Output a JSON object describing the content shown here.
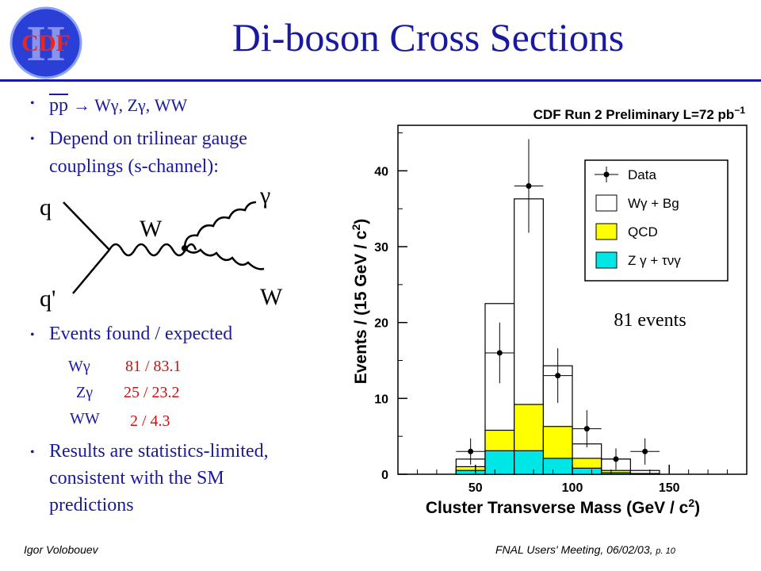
{
  "slide": {
    "title": "Di-boson Cross Sections",
    "logo_text": "CDF",
    "logo_overlay": "II",
    "bullets": {
      "b1_pp": "pp",
      "b1_rest": "→ Wγ, Zγ, WW",
      "b2": "Depend on trilinear gauge couplings (s-channel):",
      "b2_line1": "Depend on trilinear gauge",
      "b2_line2": "couplings (s-channel):",
      "b3": "Events found / expected",
      "b4_line1": "Results are statistics-limited,",
      "b4_line2": "consistent with the SM",
      "b4_line3": "predictions"
    },
    "results": [
      {
        "process": "Wγ",
        "value": "81 / 83.1"
      },
      {
        "process": "Zγ",
        "value": "25 / 23.2"
      },
      {
        "process": "WW",
        "value": "2 / 4.3"
      }
    ],
    "diagram": {
      "q": "q",
      "qprime": "q'",
      "w_mid": "W",
      "gamma": "γ",
      "w_out": "W"
    },
    "footer": {
      "author": "Igor Volobouev",
      "meeting": "FNAL Users' Meeting, 06/02/03,",
      "page": "p. 10"
    }
  },
  "chart_data": {
    "type": "bar",
    "title": "CDF Run 2 Preliminary L=72 pb",
    "title_sup": "−1",
    "xlabel": "Cluster Transverse Mass (GeV / c",
    "xlabel_sup": "2",
    "xlabel_end": ")",
    "ylabel": "Events / (15 GeV / c",
    "ylabel_sup": "2",
    "ylabel_end": ")",
    "annotation": "81 events",
    "xlim": [
      10,
      190
    ],
    "ylim": [
      0,
      46
    ],
    "xticks": [
      50,
      100,
      150
    ],
    "yticks": [
      0,
      10,
      20,
      30,
      40
    ],
    "bin_edges": [
      40,
      55,
      70,
      85,
      100,
      115,
      130,
      145
    ],
    "series": [
      {
        "name": "Wγ + Bg",
        "values": [
          2.0,
          22.5,
          36.3,
          14.3,
          4.0,
          2.0,
          0.5
        ],
        "color": "#ffffff"
      },
      {
        "name": "QCD",
        "values": [
          1.0,
          5.8,
          9.2,
          6.3,
          2.1,
          0.5,
          0.1
        ],
        "color": "#ffff00"
      },
      {
        "name": "Z γ + τνγ",
        "values": [
          0.5,
          3.1,
          3.1,
          2.1,
          0.8,
          0.2,
          0.0
        ],
        "color": "#00e5e5"
      }
    ],
    "data_points": {
      "name": "Data",
      "x": [
        47.5,
        62.5,
        77.5,
        92.5,
        107.5,
        122.5,
        137.5
      ],
      "y": [
        3,
        16,
        38,
        13,
        6,
        2,
        3
      ]
    },
    "legend": [
      {
        "label": "Data",
        "kind": "marker"
      },
      {
        "label": "Wγ + Bg",
        "kind": "box",
        "color": "#ffffff"
      },
      {
        "label": "QCD",
        "kind": "box",
        "color": "#ffff00"
      },
      {
        "label": "Z γ + τνγ",
        "kind": "box",
        "color": "#00e5e5"
      }
    ],
    "legend_position": "top-right"
  }
}
